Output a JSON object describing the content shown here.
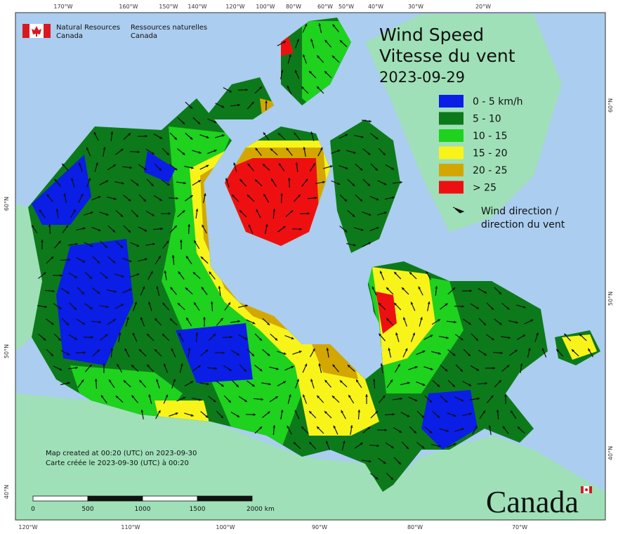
{
  "header": {
    "agency_en": [
      "Natural Resources",
      "Canada"
    ],
    "agency_fr": [
      "Ressources naturelles",
      "Canada"
    ]
  },
  "title": [
    "Wind Speed",
    "Vitesse du vent",
    "2023-09-29"
  ],
  "legend": {
    "items": [
      {
        "label": "0 - 5 km/h",
        "color": "#0a1ee6"
      },
      {
        "label": "5 - 10",
        "color": "#0c7a1a"
      },
      {
        "label": "10 - 15",
        "color": "#1ed21e"
      },
      {
        "label": "15 - 20",
        "color": "#f8f41a"
      },
      {
        "label": "20 - 25",
        "color": "#d4a600"
      },
      {
        "label": "> 25",
        "color": "#ee1010"
      }
    ],
    "direction": [
      "Wind direction /",
      "direction du vent"
    ]
  },
  "graticule": {
    "top": [
      "170°W",
      "160°W",
      "150°W",
      "140°W",
      "120°W",
      "100°W",
      "80°W",
      "60°W",
      "50°W",
      "40°W",
      "30°W",
      "20°W"
    ],
    "bottom": [
      "120°W",
      "110°W",
      "100°W",
      "90°W",
      "80°W",
      "70°W"
    ],
    "left": [
      "60°N",
      "50°N",
      "40°N"
    ],
    "right": [
      "60°N",
      "50°N",
      "40°N"
    ]
  },
  "footer": [
    "Map created at 00:20 (UTC) on 2023-09-30",
    "Carte créée le 2023-09-30 (UTC) à 00:20"
  ],
  "scale_bar": [
    "0",
    "500",
    "1000",
    "1500",
    "2000 km"
  ],
  "wordmark": "Canada"
}
